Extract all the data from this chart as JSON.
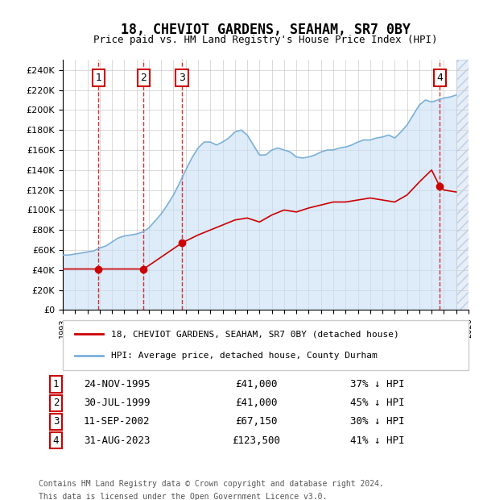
{
  "title": "18, CHEVIOT GARDENS, SEAHAM, SR7 0BY",
  "subtitle": "Price paid vs. HM Land Registry's House Price Index (HPI)",
  "legend_line1": "18, CHEVIOT GARDENS, SEAHAM, SR7 0BY (detached house)",
  "legend_line2": "HPI: Average price, detached house, County Durham",
  "footer_line1": "Contains HM Land Registry data © Crown copyright and database right 2024.",
  "footer_line2": "This data is licensed under the Open Government Licence v3.0.",
  "transactions": [
    {
      "num": 1,
      "date": "1995-11-24",
      "label": "24-NOV-1995",
      "price": 41000,
      "hpi_pct": "37% ↓ HPI",
      "x_year": 1995.9
    },
    {
      "num": 2,
      "date": "1999-07-30",
      "label": "30-JUL-1999",
      "price": 41000,
      "hpi_pct": "45% ↓ HPI",
      "x_year": 1999.58
    },
    {
      "num": 3,
      "date": "2002-09-11",
      "label": "11-SEP-2002",
      "price": 67150,
      "hpi_pct": "30% ↓ HPI",
      "x_year": 2002.7
    },
    {
      "num": 4,
      "date": "2023-08-31",
      "label": "31-AUG-2023",
      "price": 123500,
      "hpi_pct": "41% ↓ HPI",
      "x_year": 2023.66
    }
  ],
  "hpi_data": {
    "years": [
      1993,
      1993.5,
      1994,
      1994.5,
      1995,
      1995.5,
      1996,
      1996.5,
      1997,
      1997.5,
      1998,
      1998.5,
      1999,
      1999.5,
      2000,
      2000.5,
      2001,
      2001.5,
      2002,
      2002.5,
      2003,
      2003.5,
      2004,
      2004.5,
      2005,
      2005.5,
      2006,
      2006.5,
      2007,
      2007.5,
      2008,
      2008.5,
      2009,
      2009.5,
      2010,
      2010.5,
      2011,
      2011.5,
      2012,
      2012.5,
      2013,
      2013.5,
      2014,
      2014.5,
      2015,
      2015.5,
      2016,
      2016.5,
      2017,
      2017.5,
      2018,
      2018.5,
      2019,
      2019.5,
      2020,
      2020.5,
      2021,
      2021.5,
      2022,
      2022.5,
      2023,
      2023.5,
      2024,
      2024.5,
      2025
    ],
    "values": [
      55000,
      55000,
      56000,
      57000,
      58000,
      59000,
      62000,
      64000,
      68000,
      72000,
      74000,
      75000,
      76000,
      78000,
      82000,
      89000,
      96000,
      105000,
      115000,
      127000,
      140000,
      152000,
      162000,
      168000,
      168000,
      165000,
      168000,
      172000,
      178000,
      180000,
      175000,
      165000,
      155000,
      155000,
      160000,
      162000,
      160000,
      158000,
      153000,
      152000,
      153000,
      155000,
      158000,
      160000,
      160000,
      162000,
      163000,
      165000,
      168000,
      170000,
      170000,
      172000,
      173000,
      175000,
      172000,
      178000,
      185000,
      195000,
      205000,
      210000,
      208000,
      210000,
      212000,
      213000,
      215000
    ]
  },
  "price_data": {
    "years": [
      1995.9,
      1995.9,
      1999.58,
      1999.58,
      2002.7,
      2002.7,
      2023.66,
      2023.66
    ],
    "values": [
      41000,
      41000,
      41000,
      41000,
      67150,
      67150,
      123500,
      123500
    ]
  },
  "xmin": 1993,
  "xmax": 2026,
  "ymin": 0,
  "ymax": 250000,
  "yticks": [
    0,
    20000,
    40000,
    60000,
    80000,
    100000,
    120000,
    140000,
    160000,
    180000,
    200000,
    220000,
    240000
  ],
  "hpi_color": "#aec6e8",
  "price_color": "#cc0000",
  "hatch_color": "#d0dff0",
  "grid_color": "#cccccc",
  "box_color": "#cc0000",
  "bg_plot": "#ffffff",
  "bg_figure": "#ffffff"
}
